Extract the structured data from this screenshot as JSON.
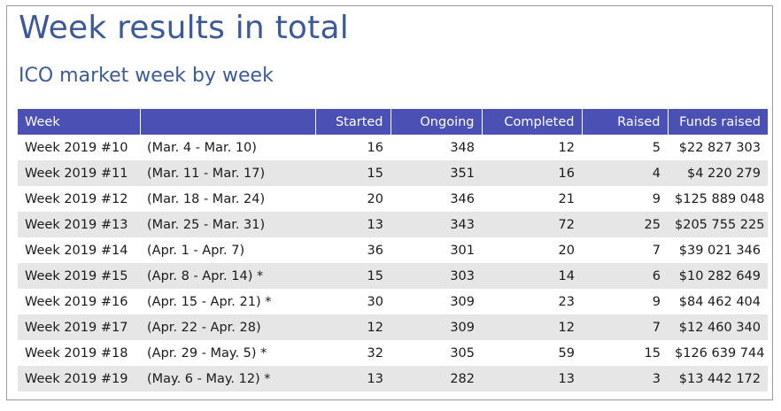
{
  "title": "Week results in total",
  "subtitle": "ICO market week by week",
  "colors": {
    "accent": "#3d5a98",
    "header_bg": "#4b50b4",
    "stripe": "#e6e6e6"
  },
  "table": {
    "headers": {
      "week": "Week",
      "range": "",
      "started": "Started",
      "ongoing": "Ongoing",
      "completed": "Completed",
      "raised": "Raised",
      "funds": "Funds raised"
    },
    "rows": [
      {
        "week": "Week 2019 #10",
        "range": "(Mar. 4 - Mar. 10)",
        "started": "16",
        "ongoing": "348",
        "completed": "12",
        "raised": "5",
        "funds": "$22 827 303"
      },
      {
        "week": "Week 2019 #11",
        "range": "(Mar. 11 - Mar. 17)",
        "started": "15",
        "ongoing": "351",
        "completed": "16",
        "raised": "4",
        "funds": "$4 220 279"
      },
      {
        "week": "Week 2019 #12",
        "range": "(Mar. 18 - Mar. 24)",
        "started": "20",
        "ongoing": "346",
        "completed": "21",
        "raised": "9",
        "funds": "$125 889 048"
      },
      {
        "week": "Week 2019 #13",
        "range": "(Mar. 25 - Mar. 31)",
        "started": "13",
        "ongoing": "343",
        "completed": "72",
        "raised": "25",
        "funds": "$205 755 225"
      },
      {
        "week": "Week 2019 #14",
        "range": "(Apr. 1 - Apr. 7)",
        "started": "36",
        "ongoing": "301",
        "completed": "20",
        "raised": "7",
        "funds": "$39 021 346"
      },
      {
        "week": "Week 2019 #15",
        "range": "(Apr. 8 - Apr. 14) *",
        "started": "15",
        "ongoing": "303",
        "completed": "14",
        "raised": "6",
        "funds": "$10 282 649"
      },
      {
        "week": "Week 2019 #16",
        "range": "(Apr. 15 - Apr. 21) *",
        "started": "30",
        "ongoing": "309",
        "completed": "23",
        "raised": "9",
        "funds": "$84 462 404"
      },
      {
        "week": "Week 2019 #17",
        "range": "(Apr. 22 - Apr. 28)",
        "started": "12",
        "ongoing": "309",
        "completed": "12",
        "raised": "7",
        "funds": "$12 460 340"
      },
      {
        "week": "Week 2019 #18",
        "range": "(Apr. 29 - May. 5) *",
        "started": "32",
        "ongoing": "305",
        "completed": "59",
        "raised": "15",
        "funds": "$126 639 744"
      },
      {
        "week": "Week 2019 #19",
        "range": "(May. 6 - May. 12) *",
        "started": "13",
        "ongoing": "282",
        "completed": "13",
        "raised": "3",
        "funds": "$13 442 172"
      }
    ]
  }
}
